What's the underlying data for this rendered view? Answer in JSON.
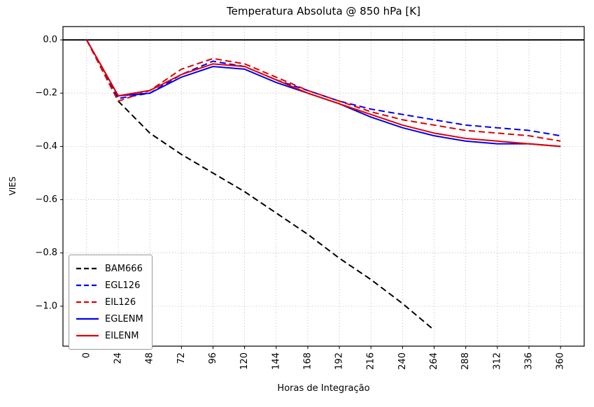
{
  "chart_data": {
    "type": "line",
    "title": "Temperatura Absoluta @ 850 hPa [K]",
    "xlabel": "Horas de Integração",
    "ylabel": "VIES",
    "grid": true,
    "zero_line": true,
    "legend_position": "lower left",
    "xlim": [
      -18,
      378
    ],
    "ylim": [
      -1.15,
      0.05
    ],
    "x_ticks": [
      0,
      24,
      48,
      72,
      96,
      120,
      144,
      168,
      192,
      216,
      240,
      264,
      288,
      312,
      336,
      360
    ],
    "y_ticks": [
      0.0,
      -0.2,
      -0.4,
      -0.6,
      -0.8,
      -1.0
    ],
    "y_tick_labels": [
      "0.0",
      "−0.2",
      "−0.4",
      "−0.6",
      "−0.8",
      "−1.0"
    ],
    "x": [
      0,
      24,
      48,
      72,
      96,
      120,
      144,
      168,
      192,
      216,
      240,
      264,
      288,
      312,
      336,
      360
    ],
    "series": [
      {
        "name": "BAM666",
        "color": "#000000",
        "style": "dashed",
        "values": [
          0.0,
          -0.23,
          -0.35,
          -0.43,
          -0.5,
          -0.57,
          -0.65,
          -0.73,
          -0.82,
          -0.9,
          -0.99,
          -1.09
        ]
      },
      {
        "name": "EGL126",
        "color": "#0000ee",
        "style": "dashed",
        "values": [
          0.0,
          -0.22,
          -0.2,
          -0.13,
          -0.08,
          -0.1,
          -0.15,
          -0.19,
          -0.23,
          -0.26,
          -0.28,
          -0.3,
          -0.32,
          -0.33,
          -0.34,
          -0.36
        ]
      },
      {
        "name": "EIL126",
        "color": "#e00000",
        "style": "dashed",
        "values": [
          0.0,
          -0.23,
          -0.19,
          -0.11,
          -0.07,
          -0.09,
          -0.14,
          -0.19,
          -0.23,
          -0.27,
          -0.3,
          -0.32,
          -0.34,
          -0.35,
          -0.36,
          -0.38
        ]
      },
      {
        "name": "EGLENM",
        "color": "#0000ee",
        "style": "solid",
        "values": [
          0.0,
          -0.21,
          -0.2,
          -0.14,
          -0.1,
          -0.11,
          -0.16,
          -0.2,
          -0.24,
          -0.29,
          -0.33,
          -0.36,
          -0.38,
          -0.39,
          -0.39,
          -0.4
        ]
      },
      {
        "name": "EILENM",
        "color": "#e00000",
        "style": "solid",
        "values": [
          0.0,
          -0.21,
          -0.19,
          -0.13,
          -0.09,
          -0.1,
          -0.15,
          -0.2,
          -0.24,
          -0.28,
          -0.32,
          -0.35,
          -0.37,
          -0.38,
          -0.39,
          -0.4
        ]
      }
    ]
  }
}
